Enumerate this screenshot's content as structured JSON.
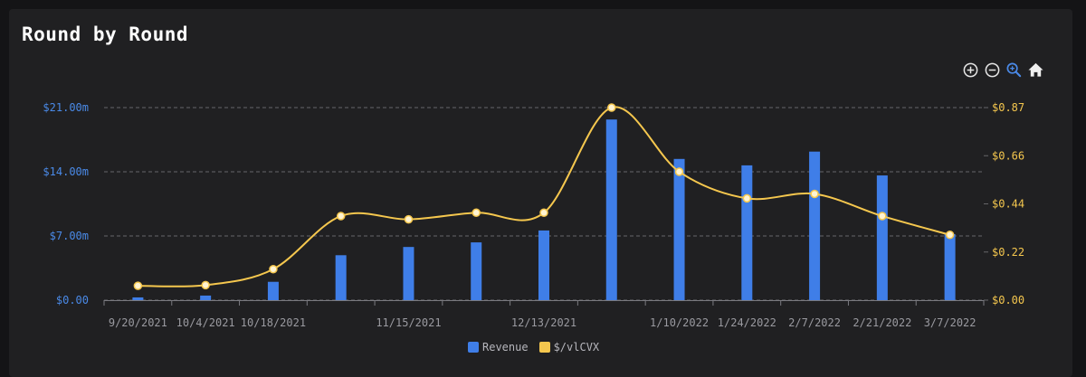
{
  "title": "Round by Round",
  "toolbar": {
    "zoom_in": "zoom-in-icon",
    "zoom_out": "zoom-out-icon",
    "zoom_select": "magnifier-zoom-icon",
    "reset": "home-icon"
  },
  "colors": {
    "revenue": "#3f7ee8",
    "price": "#f5c74e",
    "left_axis": "#4a8ae8",
    "right_axis": "#f5c74e",
    "grid": "#666669",
    "axis_text": "#9a9aa0"
  },
  "legend": {
    "revenue_label": "Revenue",
    "price_label": "$/vlCVX"
  },
  "chart_data": {
    "type": "bar+line",
    "title": "Round by Round",
    "x_tick_labels": [
      "9/20/2021",
      "10/4/2021",
      "10/18/2021",
      "11/15/2021",
      "12/13/2021",
      "1/10/2022",
      "1/24/2022",
      "2/7/2022",
      "2/21/2022",
      "3/7/2022"
    ],
    "y_left": {
      "ticks": [
        "$0.00",
        "$7.00m",
        "$14.00m",
        "$21.00m"
      ],
      "range": [
        0,
        21
      ]
    },
    "y_right": {
      "ticks": [
        "$0.00",
        "$0.22",
        "$0.44",
        "$0.66",
        "$0.87"
      ],
      "range": [
        0,
        0.87
      ]
    },
    "series": [
      {
        "name": "Revenue",
        "type": "bar",
        "axis": "left",
        "unit": "$m",
        "values": [
          0.3,
          0.5,
          2.0,
          4.9,
          5.8,
          6.3,
          7.6,
          19.7,
          15.4,
          14.7,
          16.2,
          13.6,
          7.2
        ]
      },
      {
        "name": "$/vlCVX",
        "type": "line",
        "axis": "right",
        "unit": "$",
        "values": [
          0.065,
          0.068,
          0.14,
          0.38,
          0.365,
          0.395,
          0.395,
          0.87,
          0.58,
          0.46,
          0.48,
          0.38,
          0.295
        ]
      }
    ],
    "points": 13,
    "grid": true,
    "legend_position": "bottom-center"
  }
}
